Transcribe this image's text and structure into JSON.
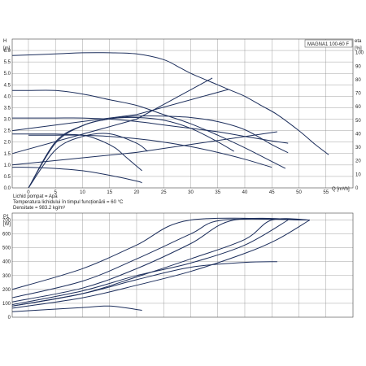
{
  "model_label": "MAGNA1 100-60 F",
  "notes": [
    "Lichid pompat = Apă",
    "Temperatura lichidului în timpul funcționării = 60 °C",
    "Densitate = 983.2 kg/m³"
  ],
  "colors": {
    "curve": "#1c2e5c",
    "grid": "#8a8a8a",
    "frame": "#444444"
  },
  "chart_data": [
    {
      "type": "line",
      "title": "",
      "xlabel": "Q [m³/h]",
      "ylabel": "H [m]",
      "y2label": "eta [%]",
      "xlim": [
        -3,
        60
      ],
      "ylim": [
        0,
        6.5
      ],
      "y2lim": [
        0,
        110
      ],
      "xticks": [
        "0",
        "5",
        "10",
        "15",
        "20",
        "25",
        "30",
        "35",
        "40",
        "45",
        "50",
        "55"
      ],
      "yticks": [
        "0.0",
        "0.5",
        "1.0",
        "1.5",
        "2.0",
        "2.5",
        "3.0",
        "3.5",
        "4.0",
        "4.5",
        "5.0",
        "5.5",
        "6.0"
      ],
      "y2ticks": [
        "0",
        "10",
        "20",
        "30",
        "40",
        "50",
        "60",
        "70",
        "80",
        "90",
        "100"
      ],
      "grid": true,
      "head_curves": [
        {
          "x": [
            -3,
            5,
            10,
            15,
            20,
            25,
            28,
            30,
            34,
            37,
            40,
            43,
            46,
            50,
            53,
            55.5
          ],
          "y": [
            5.78,
            5.85,
            5.9,
            5.9,
            5.85,
            5.6,
            5.25,
            5.0,
            4.6,
            4.3,
            4.0,
            3.6,
            3.2,
            2.5,
            1.9,
            1.45
          ]
        },
        {
          "x": [
            -3,
            0,
            5,
            10,
            15,
            20,
            25,
            30,
            35,
            40,
            45,
            47.5
          ],
          "y": [
            4.25,
            4.25,
            4.25,
            4.1,
            3.85,
            3.6,
            3.2,
            2.8,
            2.3,
            1.75,
            1.15,
            0.85
          ]
        },
        {
          "x": [
            -3,
            0,
            5,
            10,
            15,
            20,
            25,
            30,
            35,
            40,
            45,
            48
          ],
          "y": [
            3.05,
            3.05,
            3.05,
            3.05,
            3.0,
            2.9,
            2.75,
            2.6,
            2.45,
            2.25,
            2.05,
            1.95
          ]
        },
        {
          "x": [
            0,
            5,
            10,
            15,
            20,
            25,
            30,
            35,
            40,
            45
          ],
          "y": [
            2.3,
            2.3,
            2.3,
            2.25,
            2.15,
            2.0,
            1.8,
            1.55,
            1.25,
            0.9
          ]
        },
        {
          "x": [
            -3,
            0,
            5,
            10,
            13,
            16,
            18,
            21
          ],
          "y": [
            2.35,
            2.35,
            2.35,
            2.3,
            2.1,
            1.75,
            1.35,
            0.75
          ]
        },
        {
          "x": [
            -3,
            0,
            5,
            10,
            15,
            20,
            21
          ],
          "y": [
            0.9,
            0.9,
            0.85,
            0.75,
            0.55,
            0.3,
            0.22
          ]
        }
      ],
      "efficiency_curves": [
        {
          "x": [
            0,
            5,
            10,
            15,
            20,
            25,
            30,
            35,
            40,
            45,
            48
          ],
          "y": [
            0,
            34,
            46,
            51,
            53,
            53,
            52,
            49,
            43,
            32,
            26
          ]
        },
        {
          "x": [
            0,
            5,
            10,
            15,
            20,
            25,
            30,
            35,
            38
          ],
          "y": [
            0,
            33,
            46,
            51,
            52,
            50,
            44,
            34,
            27
          ]
        },
        {
          "x": [
            0,
            5,
            10,
            15,
            20,
            22
          ],
          "y": [
            0,
            28,
            38,
            40,
            33,
            27
          ]
        }
      ],
      "system_curves": [
        {
          "x": [
            -3,
            20,
            34
          ],
          "y": [
            1.5,
            3.0,
            4.8
          ]
        },
        {
          "x": [
            -3,
            20,
            37
          ],
          "y": [
            2.5,
            3.2,
            4.3
          ]
        },
        {
          "x": [
            -3,
            20,
            46
          ],
          "y": [
            1.0,
            1.55,
            2.45
          ]
        }
      ]
    },
    {
      "type": "line",
      "title": "",
      "xlabel": "",
      "ylabel": "P1 [W]",
      "xlim": [
        -3,
        60
      ],
      "ylim": [
        0,
        750
      ],
      "yticks": [
        "0",
        "100",
        "200",
        "300",
        "400",
        "500",
        "600",
        "700"
      ],
      "grid": true,
      "power_curves": [
        {
          "x": [
            -3,
            10,
            20,
            30,
            52
          ],
          "y": [
            200,
            350,
            520,
            700,
            700
          ]
        },
        {
          "x": [
            -3,
            10,
            20,
            30,
            36,
            52
          ],
          "y": [
            140,
            260,
            420,
            600,
            700,
            700
          ]
        },
        {
          "x": [
            -3,
            10,
            20,
            30,
            38,
            52
          ],
          "y": [
            110,
            210,
            350,
            530,
            700,
            700
          ]
        },
        {
          "x": [
            -3,
            10,
            20,
            30,
            40,
            45,
            52
          ],
          "y": [
            80,
            170,
            290,
            420,
            560,
            700,
            700
          ]
        },
        {
          "x": [
            -3,
            10,
            20,
            30,
            40,
            46,
            52
          ],
          "y": [
            65,
            140,
            230,
            330,
            460,
            560,
            700
          ]
        },
        {
          "x": [
            -3,
            10,
            20,
            30,
            40,
            48
          ],
          "y": [
            90,
            190,
            300,
            390,
            520,
            700
          ]
        },
        {
          "x": [
            -3,
            10,
            20,
            30,
            40,
            46
          ],
          "y": [
            80,
            170,
            270,
            360,
            395,
            400
          ]
        },
        {
          "x": [
            -3,
            10,
            15,
            21
          ],
          "y": [
            40,
            70,
            80,
            50
          ]
        }
      ]
    }
  ]
}
